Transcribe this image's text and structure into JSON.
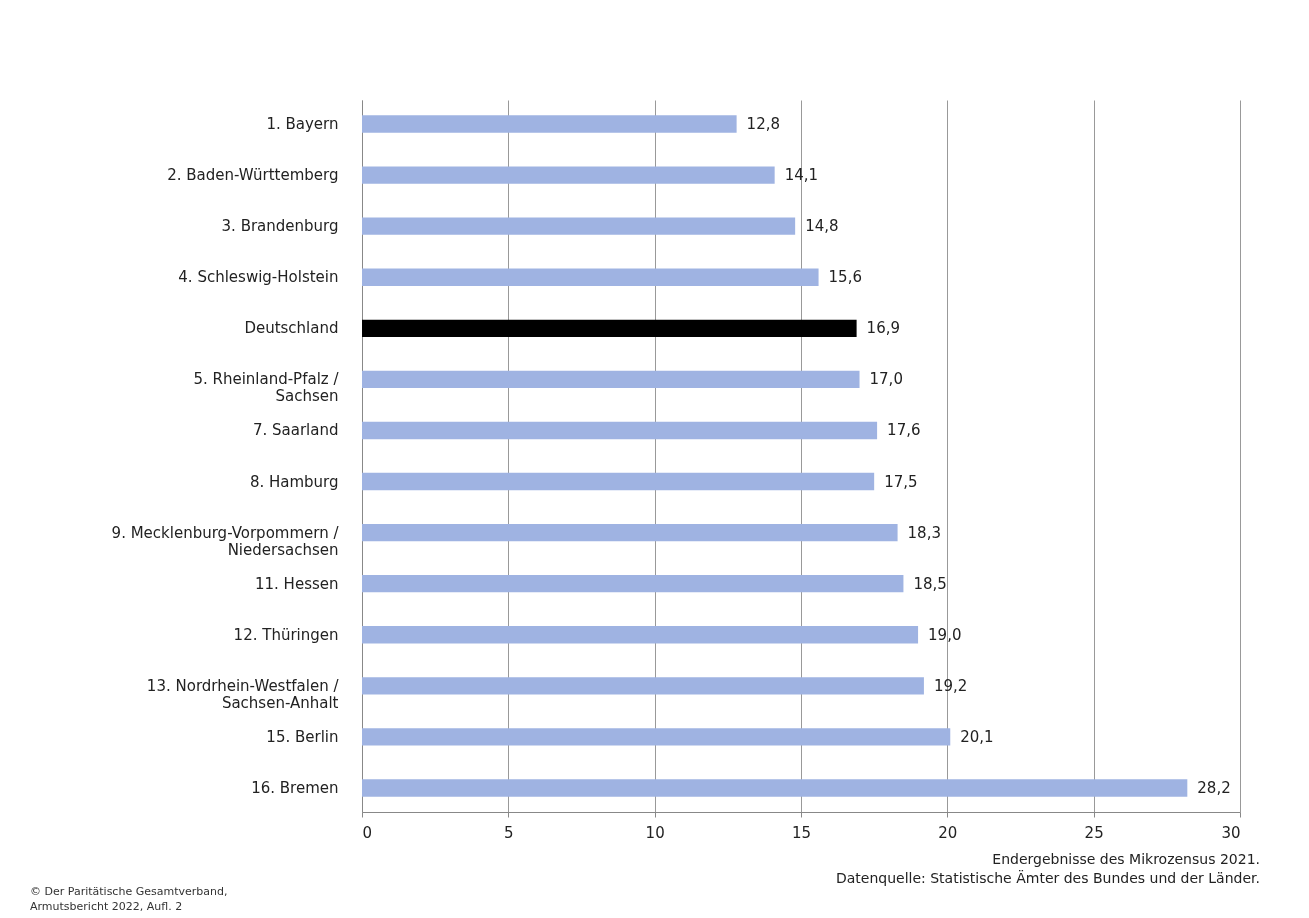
{
  "chart_data": {
    "type": "bar",
    "orientation": "horizontal",
    "categories": [
      "1. Bayern",
      "2. Baden-Württemberg",
      "3. Brandenburg",
      "4. Schleswig-Holstein",
      "Deutschland",
      "5. Rheinland-Pfalz / Sachsen",
      "7. Saarland",
      "8. Hamburg",
      "9. Mecklenburg-Vorpommern / Niedersachsen",
      "11. Hessen",
      "12. Thüringen",
      "13. Nordrhein-Westfalen / Sachsen-Anhalt",
      "15. Berlin",
      "16. Bremen"
    ],
    "values": [
      12.8,
      14.1,
      14.8,
      15.6,
      16.9,
      17.0,
      17.6,
      17.5,
      18.3,
      18.5,
      19.0,
      19.2,
      20.1,
      28.2
    ],
    "value_labels": [
      "12,8",
      "14,1",
      "14,8",
      "15,6",
      "16,9",
      "17,0",
      "17,6",
      "17,5",
      "18,3",
      "18,5",
      "19,0",
      "19,2",
      "20,1",
      "28,2"
    ],
    "colors": [
      "#9fb3e2",
      "#9fb3e2",
      "#9fb3e2",
      "#9fb3e2",
      "#000000",
      "#9fb3e2",
      "#9fb3e2",
      "#9fb3e2",
      "#9fb3e2",
      "#9fb3e2",
      "#9fb3e2",
      "#9fb3e2",
      "#9fb3e2",
      "#9fb3e2"
    ],
    "xlim": [
      0,
      30
    ],
    "xticks": [
      0,
      5,
      10,
      15,
      20,
      25,
      30
    ],
    "grid": "x",
    "annotations": [
      "Endergebnisse des Mikrozensus 2021.",
      "Datenquelle: Statistische Ämter des Bundes und der Länder.",
      "© Der Paritätische Gesamtverband, Armutsbericht 2022, Aufl. 2"
    ]
  }
}
